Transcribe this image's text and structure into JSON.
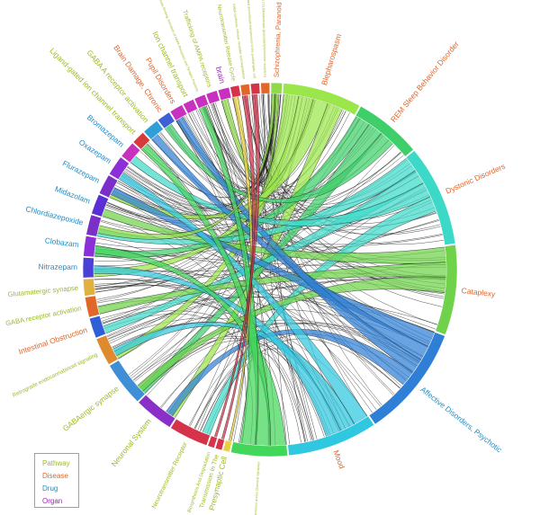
{
  "colors": {
    "Pathway": "#9bbc21",
    "Disease": "#e0662a",
    "Drug": "#1e8fc8",
    "Organ": "#a11fbf"
  },
  "legend": [
    {
      "label": "Pathway",
      "category": "Pathway"
    },
    {
      "label": "Disease",
      "category": "Disease"
    },
    {
      "label": "Drug",
      "category": "Drug"
    },
    {
      "label": "Organ",
      "category": "Organ"
    }
  ],
  "nodes": [
    {
      "label": "Schizophrenia, Paranoid",
      "category": "Disease",
      "weight": 1,
      "color": "#8fd94a"
    },
    {
      "label": "Blepharospasm",
      "category": "Disease",
      "weight": 7,
      "color": "#9be64a"
    },
    {
      "label": "REM Sleep Behavior Disorder",
      "category": "Disease",
      "weight": 6,
      "color": "#3fcf6a"
    },
    {
      "label": "Dystonic Disorders",
      "category": "Disease",
      "weight": 9,
      "color": "#3dd9c8"
    },
    {
      "label": "Cataplexy",
      "category": "Disease",
      "weight": 8,
      "color": "#6fd24a"
    },
    {
      "label": "Affective Disorders, Psychotic",
      "category": "Drug",
      "weight": 10,
      "color": "#2f7fd6"
    },
    {
      "label": "Mood",
      "category": "Disease",
      "weight": 8,
      "color": "#30c8e0"
    },
    {
      "label": "Transmission across Chemical Synapses",
      "category": "Pathway",
      "weight": 5,
      "color": "#42d65a"
    },
    {
      "label": "Presynaptic Cell",
      "category": "Pathway",
      "weight": 0.6,
      "color": "#e8d040"
    },
    {
      "label": "Transmission In The",
      "category": "Pathway",
      "weight": 0.6,
      "color": "#d6324a"
    },
    {
      "label": "Biosynthesis And Degradation",
      "category": "Pathway",
      "weight": 0.6,
      "color": "#d6324a"
    },
    {
      "label": "Neurotransmitter Receptor",
      "category": "Pathway",
      "weight": 3.5,
      "color": "#d6324a"
    },
    {
      "label": "Neuronal System",
      "category": "Pathway",
      "weight": 3.5,
      "color": "#8a30c8"
    },
    {
      "label": "GABAergic synapse",
      "category": "Pathway",
      "weight": 4,
      "color": "#3f8fd6"
    },
    {
      "label": "Retrograde endocannabinoid signaling",
      "category": "Pathway",
      "weight": 2.5,
      "color": "#e08a30"
    },
    {
      "label": "Intestinal Obstruction",
      "category": "Disease",
      "weight": 1.8,
      "color": "#2f5fd6"
    },
    {
      "label": "GABA receptor activation",
      "category": "Pathway",
      "weight": 1.8,
      "color": "#e0662a"
    },
    {
      "label": "Glutamatergic synapse",
      "category": "Pathway",
      "weight": 1.5,
      "color": "#e0b040"
    },
    {
      "label": "Nitrazepam",
      "category": "Drug",
      "weight": 1.8,
      "color": "#4a3fd6"
    },
    {
      "label": "Clobazam",
      "category": "Drug",
      "weight": 1.8,
      "color": "#8a30d6"
    },
    {
      "label": "Chlordiazepoxide",
      "category": "Drug",
      "weight": 1.8,
      "color": "#7a30c8"
    },
    {
      "label": "Midazolam",
      "category": "Drug",
      "weight": 1.8,
      "color": "#5a30d6"
    },
    {
      "label": "Flurazepam",
      "category": "Drug",
      "weight": 1.8,
      "color": "#7a30c8"
    },
    {
      "label": "Oxazepam",
      "category": "Drug",
      "weight": 1.8,
      "color": "#8a30d6"
    },
    {
      "label": "Bromazepam",
      "category": "Drug",
      "weight": 1.5,
      "color": "#c830c0"
    },
    {
      "label": "Ligand-gated ion channel transport",
      "category": "Pathway",
      "weight": 1.2,
      "color": "#d63a3a"
    },
    {
      "label": "GABA A receptor activation",
      "category": "Pathway",
      "weight": 1.5,
      "color": "#2f9fd6"
    },
    {
      "label": "Brain Damage, Chronic",
      "category": "Disease",
      "weight": 1.2,
      "color": "#3f5fd6"
    },
    {
      "label": "Pupil Disorders",
      "category": "Disease",
      "weight": 1.2,
      "color": "#c830c0"
    },
    {
      "label": "Ion channel transport",
      "category": "Pathway",
      "weight": 1.0,
      "color": "#c830c0"
    },
    {
      "label": "Glutamate Binding, Activation of AMPA Receptors and Synaptic Plasticity",
      "category": "Pathway",
      "weight": 1.0,
      "color": "#c830c0"
    },
    {
      "label": "Trafficking of AMPA receptors",
      "category": "Pathway",
      "weight": 1.0,
      "color": "#c830c0"
    },
    {
      "label": "brain",
      "category": "Organ",
      "weight": 1.0,
      "color": "#c830c0"
    },
    {
      "label": "Neurotransmitter Release Cycle",
      "category": "Pathway",
      "weight": 0.8,
      "color": "#d6324a"
    },
    {
      "label": "GABA synthesis, release, reuptake and degradation",
      "category": "Pathway",
      "weight": 0.8,
      "color": "#e0662a"
    },
    {
      "label": "Neurotransmitter receptor binding and downstream transmission in the postsynaptic cell",
      "category": "Pathway",
      "weight": 0.8,
      "color": "#d6324a"
    },
    {
      "label": "Class C/3 (Metabotropic glutamate/pheromone receptors)",
      "category": "Pathway",
      "weight": 0.8,
      "color": "#e0662a"
    }
  ],
  "ribbons": [
    [
      1,
      14
    ],
    [
      1,
      18
    ],
    [
      1,
      22
    ],
    [
      1,
      12
    ],
    [
      2,
      19
    ],
    [
      2,
      13
    ],
    [
      2,
      27
    ],
    [
      3,
      20
    ],
    [
      3,
      15
    ],
    [
      3,
      24
    ],
    [
      3,
      11
    ],
    [
      4,
      21
    ],
    [
      4,
      16
    ],
    [
      4,
      13
    ],
    [
      5,
      22
    ],
    [
      5,
      26
    ],
    [
      5,
      28
    ],
    [
      5,
      12
    ],
    [
      6,
      23
    ],
    [
      6,
      14
    ],
    [
      6,
      18
    ],
    [
      7,
      19
    ],
    [
      7,
      25
    ],
    [
      7,
      30
    ],
    [
      0,
      20
    ],
    [
      0,
      32
    ],
    [
      8,
      33
    ],
    [
      9,
      34
    ],
    [
      10,
      35
    ]
  ],
  "chord_counts": [
    20,
    22,
    18,
    26,
    22,
    30,
    24,
    14
  ]
}
